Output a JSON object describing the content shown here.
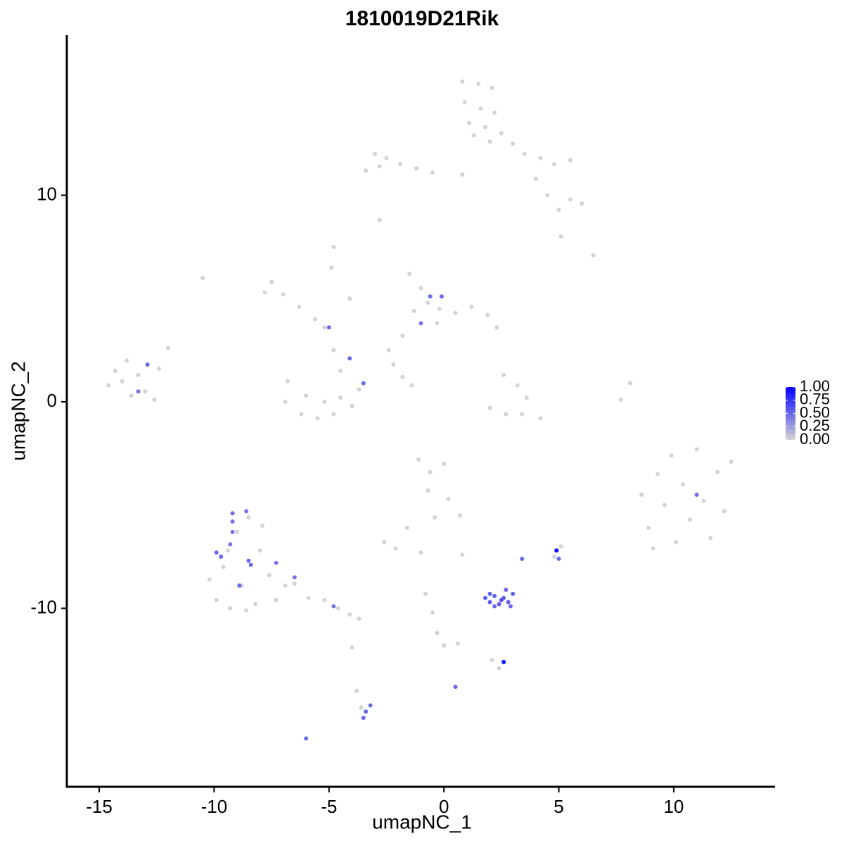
{
  "chart_data": {
    "type": "scatter",
    "title": "1810019D21Rik",
    "x_label": "umapNC_1",
    "y_label": "umapNC_2",
    "xlim": [
      -16.41,
      14.41
    ],
    "ylim": [
      -18.64,
      17.75
    ],
    "xticks": [
      -15,
      -10,
      -5,
      0,
      5,
      10
    ],
    "yticks": [
      -10,
      0,
      10
    ],
    "grid": false,
    "color_low": "#d3d3d3",
    "color_high": "#0000ff",
    "colorlim": [
      0,
      1
    ],
    "colorticks": [
      {
        "value": 0,
        "label": "0.00"
      },
      {
        "value": 0.25,
        "label": "0.25"
      },
      {
        "value": 0.5,
        "label": "0.50"
      },
      {
        "value": 0.75,
        "label": "0.75"
      },
      {
        "value": 1,
        "label": "1.00"
      }
    ],
    "x": [
      0.8,
      1.5,
      2.1,
      0.9,
      1.6,
      2.2,
      1.1,
      1.8,
      2.5,
      3.0,
      2.0,
      1.3,
      -3.0,
      -2.5,
      -1.9,
      -1.2,
      -0.5,
      -3.4,
      -2.8,
      0.8,
      3.5,
      4.2,
      4.8,
      5.5,
      4.0,
      4.5,
      5.0,
      5.5,
      6.0,
      6.5,
      5.1,
      -2.8,
      -10.5,
      -4.8,
      -7.5,
      -7.0,
      -6.3,
      -5.6,
      -5.2,
      -4.8,
      -4.5,
      -4.9,
      -4.1,
      -7.8,
      -6.8,
      -6.9,
      -6.2,
      -5.5,
      -4.8,
      -4.0,
      -3.7,
      -6.0,
      -5.2,
      -4.5,
      -1.5,
      -1.0,
      -0.7,
      -1.3,
      -0.2,
      0.5,
      1.2,
      1.9,
      2.3,
      -1.8,
      -2.4,
      -0.3,
      -2.2,
      -1.4,
      -1.8,
      -14.6,
      -14.3,
      -13.8,
      -13.3,
      -13.0,
      -12.6,
      -13.6,
      -12.4,
      -12.0,
      -14.0,
      2.6,
      3.2,
      3.6,
      3.4,
      2.7,
      2.0,
      4.2,
      7.7,
      8.1,
      8.6,
      8.9,
      9.3,
      9.6,
      9.9,
      10.1,
      10.4,
      10.7,
      11.0,
      11.3,
      11.6,
      11.9,
      12.2,
      12.5,
      9.1,
      -1.1,
      -0.6,
      0.0,
      -0.7,
      0.2,
      0.7,
      -0.4,
      -2.6,
      -2.1,
      -1.6,
      -1.0,
      0.8,
      -0.8,
      -0.5,
      -0.3,
      0.0,
      0.6,
      2.1,
      2.4,
      -4.0,
      -3.8,
      -3.6,
      -10.2,
      -9.9,
      -9.6,
      -9.3,
      -9.0,
      -8.8,
      -8.5,
      -8.2,
      -8.0,
      -7.6,
      -7.3,
      -7.9,
      -6.9,
      -9.4,
      -8.6,
      -6.5,
      -5.9,
      -5.2,
      -4.6,
      -4.1,
      -3.7,
      5.1,
      4.8,
      -0.6,
      -0.1,
      -1.0,
      -5.0,
      -4.1,
      -3.5,
      -12.9,
      -13.3,
      11.0,
      -9.2,
      -8.6,
      -9.2,
      -9.2,
      -9.9,
      -9.3,
      -9.7,
      -8.5,
      -8.4,
      -7.3,
      -8.9,
      -6.5,
      -4.8,
      3.4,
      5.0,
      2.6,
      0.5,
      -3.2,
      -3.4,
      -3.5,
      -6.0,
      1.8,
      2.0,
      2.2,
      2.4,
      2.6,
      2.8,
      3.0,
      2.2,
      2.7,
      2.0,
      2.5,
      2.9,
      4.9
    ],
    "y": [
      15.5,
      15.4,
      15.2,
      14.5,
      14.2,
      14.0,
      13.5,
      13.3,
      13.0,
      12.5,
      12.6,
      12.9,
      12.0,
      11.8,
      11.5,
      11.3,
      11.1,
      11.2,
      11.4,
      11.0,
      12.0,
      11.8,
      11.5,
      11.7,
      10.8,
      10.0,
      9.3,
      9.8,
      9.6,
      7.1,
      8.0,
      8.8,
      6.0,
      7.5,
      5.8,
      5.2,
      4.6,
      4.0,
      3.6,
      2.5,
      1.5,
      6.5,
      5.0,
      5.3,
      1.0,
      0.0,
      -0.6,
      -0.8,
      -0.6,
      -0.2,
      0.6,
      0.3,
      0.0,
      0.2,
      6.2,
      5.5,
      4.8,
      4.4,
      4.5,
      4.3,
      4.6,
      4.2,
      3.6,
      3.2,
      2.5,
      3.8,
      1.8,
      0.8,
      1.2,
      0.8,
      1.5,
      2.0,
      1.3,
      0.5,
      0.1,
      0.3,
      1.6,
      2.6,
      1.0,
      1.3,
      0.8,
      0.2,
      -0.6,
      -0.6,
      -0.3,
      -0.8,
      0.1,
      0.9,
      -4.5,
      -6.1,
      -3.5,
      -5.0,
      -2.6,
      -6.8,
      -4.0,
      -5.7,
      -2.3,
      -4.8,
      -6.6,
      -3.4,
      -5.3,
      -2.9,
      -7.1,
      -2.8,
      -3.4,
      -3.0,
      -4.3,
      -4.7,
      -5.5,
      -5.6,
      -6.8,
      -7.1,
      -6.1,
      -7.3,
      -7.4,
      -9.3,
      -10.2,
      -11.2,
      -11.8,
      -11.7,
      -12.5,
      -12.9,
      -11.9,
      -14.0,
      -14.8,
      -8.6,
      -9.6,
      -8.0,
      -10.0,
      -6.3,
      -8.9,
      -5.6,
      -9.8,
      -7.2,
      -8.4,
      -9.6,
      -6.0,
      -8.9,
      -7.2,
      -10.1,
      -8.8,
      -9.5,
      -9.6,
      -10.0,
      -10.3,
      -10.5,
      -7.0,
      -7.5,
      5.1,
      5.1,
      3.8,
      3.6,
      2.1,
      0.9,
      1.8,
      0.5,
      -4.5,
      -5.4,
      -5.3,
      -5.8,
      -6.3,
      -7.3,
      -6.9,
      -7.5,
      -7.7,
      -7.9,
      -7.8,
      -8.9,
      -8.5,
      -9.9,
      -7.6,
      -7.6,
      -12.6,
      -13.8,
      -14.7,
      -15.0,
      -15.3,
      -16.3,
      -9.5,
      -9.7,
      -9.4,
      -9.8,
      -9.5,
      -9.7,
      -9.3,
      -9.9,
      -9.1,
      -9.3,
      -9.6,
      -9.9,
      -7.2
    ],
    "values": [
      0,
      0,
      0,
      0,
      0,
      0,
      0,
      0,
      0,
      0,
      0,
      0,
      0,
      0,
      0,
      0,
      0,
      0,
      0,
      0,
      0,
      0,
      0,
      0,
      0,
      0,
      0,
      0,
      0,
      0,
      0,
      0,
      0,
      0,
      0,
      0,
      0,
      0,
      0,
      0,
      0,
      0,
      0,
      0,
      0,
      0,
      0,
      0,
      0,
      0,
      0,
      0,
      0,
      0,
      0,
      0,
      0,
      0,
      0,
      0,
      0,
      0,
      0,
      0,
      0,
      0,
      0,
      0,
      0,
      0,
      0,
      0,
      0,
      0,
      0,
      0,
      0,
      0,
      0,
      0,
      0,
      0,
      0,
      0,
      0,
      0,
      0,
      0,
      0,
      0,
      0,
      0,
      0,
      0,
      0,
      0,
      0,
      0,
      0,
      0,
      0,
      0,
      0,
      0,
      0,
      0,
      0,
      0,
      0,
      0,
      0,
      0,
      0,
      0,
      0,
      0,
      0,
      0,
      0,
      0,
      0,
      0,
      0,
      0,
      0,
      0,
      0,
      0,
      0,
      0,
      0,
      0,
      0,
      0,
      0,
      0,
      0,
      0,
      0,
      0,
      0,
      0,
      0,
      0,
      0,
      0,
      0,
      0,
      0.5,
      0.5,
      0.45,
      0.5,
      0.5,
      0.5,
      0.5,
      0.45,
      0.5,
      0.5,
      0.45,
      0.45,
      0.45,
      0.5,
      0.45,
      0.5,
      0.5,
      0.5,
      0.45,
      0.5,
      0.45,
      0.45,
      0.5,
      0.5,
      0.9,
      0.5,
      0.5,
      0.5,
      0.5,
      0.5,
      0.55,
      0.55,
      0.55,
      0.55,
      0.55,
      0.55,
      0.55,
      0.5,
      0.5,
      0.55,
      0.6,
      0.5,
      1.0
    ]
  }
}
